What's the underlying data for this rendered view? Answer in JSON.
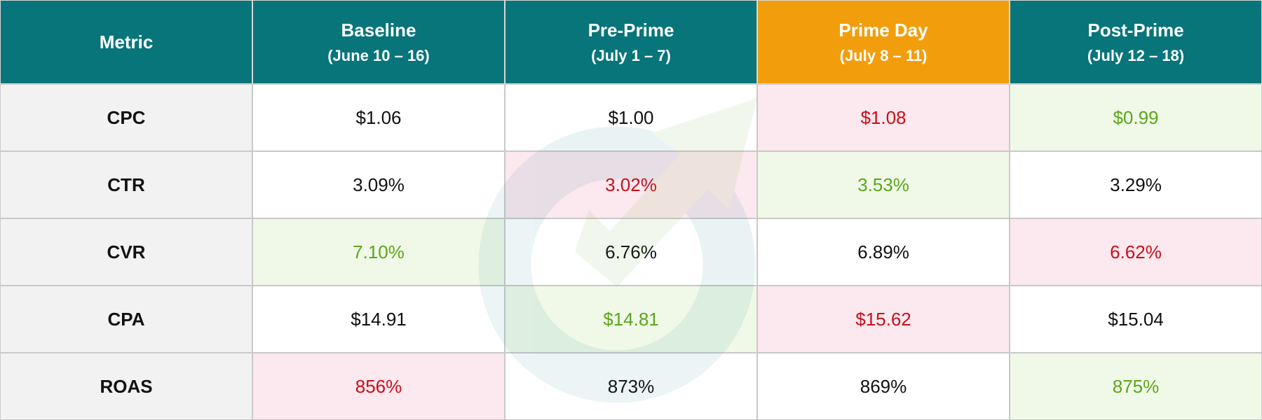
{
  "header": [
    {
      "title": "Metric",
      "color": "#07757a"
    },
    {
      "title": "Baseline",
      "subtitle": "(June 10 – 16)",
      "color": "#07757a"
    },
    {
      "title": "Pre-Prime",
      "subtitle": "(July 1 – 7)",
      "color": "#07757a"
    },
    {
      "title": "Prime Day",
      "subtitle": "(July 8 – 11)",
      "color": "#f29e0c"
    },
    {
      "title": "Post-Prime",
      "subtitle": "(July 12 – 18)",
      "color": "#07757a"
    }
  ],
  "rows": [
    {
      "metric": "CPC",
      "cells": [
        {
          "text": "$1.06",
          "status": "neutral"
        },
        {
          "text": "$1.00",
          "status": "neutral"
        },
        {
          "text": "$1.08",
          "status": "bad"
        },
        {
          "text": "$0.99",
          "status": "good"
        }
      ]
    },
    {
      "metric": "CTR",
      "cells": [
        {
          "text": "3.09%",
          "status": "neutral"
        },
        {
          "text": "3.02%",
          "status": "bad"
        },
        {
          "text": "3.53%",
          "status": "good"
        },
        {
          "text": "3.29%",
          "status": "neutral"
        }
      ]
    },
    {
      "metric": "CVR",
      "cells": [
        {
          "text": "7.10%",
          "status": "good"
        },
        {
          "text": "6.76%",
          "status": "neutral"
        },
        {
          "text": "6.89%",
          "status": "neutral"
        },
        {
          "text": "6.62%",
          "status": "bad"
        }
      ]
    },
    {
      "metric": "CPA",
      "cells": [
        {
          "text": "$14.91",
          "status": "neutral"
        },
        {
          "text": "$14.81",
          "status": "good"
        },
        {
          "text": "$15.62",
          "status": "bad"
        },
        {
          "text": "$15.04",
          "status": "neutral"
        }
      ]
    },
    {
      "metric": "ROAS",
      "cells": [
        {
          "text": "856%",
          "status": "bad"
        },
        {
          "text": "873%",
          "status": "neutral"
        },
        {
          "text": "869%",
          "status": "neutral"
        },
        {
          "text": "875%",
          "status": "good"
        }
      ]
    }
  ]
}
